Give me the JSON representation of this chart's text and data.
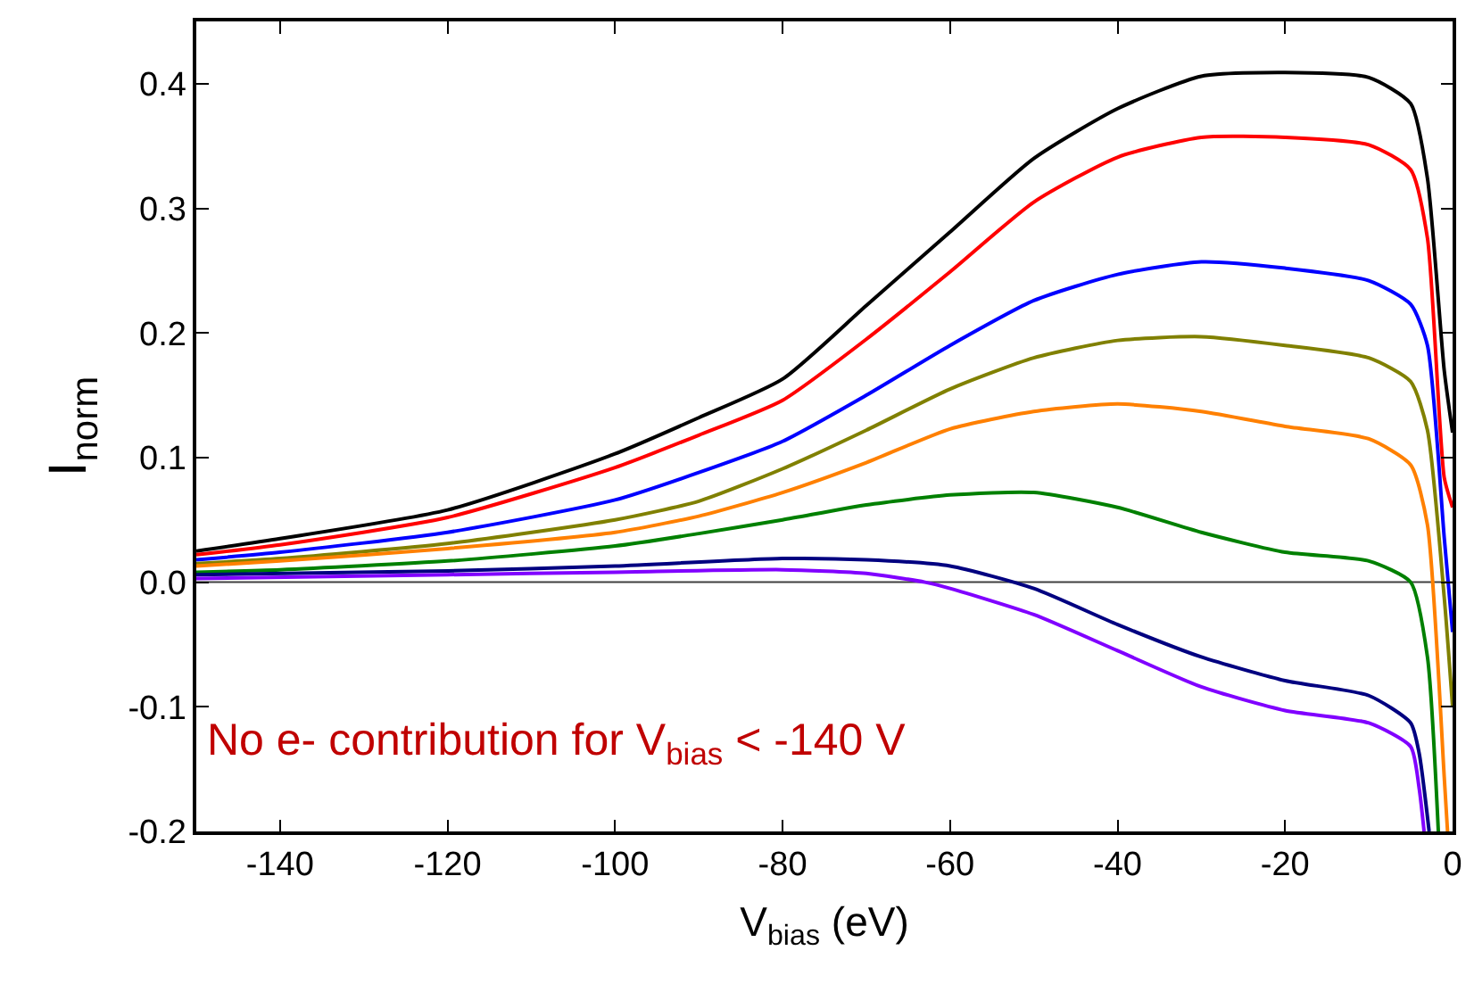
{
  "chart_data": {
    "type": "line",
    "xlabel": "V$_{bias}$ (eV)",
    "ylabel": "I$_{norm}$",
    "annotations": [
      "No e- contribution for V$_{bias}$ < -140 V"
    ],
    "xlim": [
      -150,
      0
    ],
    "xticks": [
      -140,
      -120,
      -100,
      -80,
      -60,
      -40,
      -20,
      0
    ],
    "ylim": [
      -0.2,
      0.45
    ],
    "yticks": [
      {
        "value": -0.2,
        "label": "-0.2"
      },
      {
        "value": -0.1,
        "label": "-0.1"
      },
      {
        "value": 0,
        "label": "0.0"
      },
      {
        "value": 0.1,
        "label": "0.1"
      },
      {
        "value": 0.2,
        "label": "0.2"
      },
      {
        "value": 0.3,
        "label": "0.3"
      },
      {
        "value": 0.4,
        "label": "0.4"
      }
    ],
    "line_style": "solid",
    "ref_lines": [
      {
        "axis": "y",
        "value": 0,
        "color": "#404040"
      }
    ],
    "series": [
      {
        "color": "#000000",
        "x": [
          -150,
          -140,
          -120,
          -100,
          -90,
          -80,
          -70,
          -60,
          -50,
          -40,
          -30,
          -20,
          -10,
          -5,
          -3,
          -1,
          0
        ],
        "values": [
          0.025,
          0.035,
          0.058,
          0.103,
          0.132,
          0.163,
          0.222,
          0.281,
          0.34,
          0.38,
          0.406,
          0.409,
          0.405,
          0.384,
          0.324,
          0.17,
          0.12
        ]
      },
      {
        "color": "#ff0000",
        "x": [
          -150,
          -140,
          -120,
          -100,
          -90,
          -80,
          -70,
          -60,
          -50,
          -40,
          -30,
          -20,
          -10,
          -5,
          -3,
          -1,
          0
        ],
        "values": [
          0.022,
          0.03,
          0.052,
          0.092,
          0.118,
          0.146,
          0.195,
          0.249,
          0.305,
          0.341,
          0.357,
          0.357,
          0.351,
          0.331,
          0.276,
          0.084,
          0.06
        ]
      },
      {
        "color": "#0000ff",
        "x": [
          -150,
          -140,
          -120,
          -100,
          -90,
          -80,
          -70,
          -60,
          -50,
          -40,
          -30,
          -20,
          -10,
          -5,
          -3,
          -1,
          0
        ],
        "values": [
          0.018,
          0.024,
          0.04,
          0.066,
          0.088,
          0.113,
          0.15,
          0.19,
          0.226,
          0.247,
          0.257,
          0.252,
          0.242,
          0.223,
          0.19,
          0.036,
          -0.04
        ]
      },
      {
        "color": "#808000",
        "x": [
          -150,
          -140,
          -120,
          -100,
          -90,
          -80,
          -70,
          -60,
          -50,
          -40,
          -30,
          -20,
          -10,
          -5,
          -3,
          -1,
          0
        ],
        "values": [
          0.015,
          0.019,
          0.031,
          0.05,
          0.065,
          0.091,
          0.122,
          0.155,
          0.18,
          0.194,
          0.197,
          0.19,
          0.18,
          0.161,
          0.122,
          -0.012,
          -0.1
        ]
      },
      {
        "color": "#ff8000",
        "x": [
          -150,
          -140,
          -120,
          -100,
          -90,
          -80,
          -70,
          -60,
          -50,
          -40,
          -30,
          -20,
          -10,
          -5,
          -3,
          -1,
          -0.6
        ],
        "values": [
          0.013,
          0.017,
          0.027,
          0.04,
          0.053,
          0.072,
          0.096,
          0.123,
          0.137,
          0.143,
          0.137,
          0.125,
          0.115,
          0.094,
          0.046,
          -0.156,
          -0.2
        ]
      },
      {
        "color": "#008000",
        "x": [
          -150,
          -140,
          -120,
          -100,
          -90,
          -80,
          -70,
          -60,
          -50,
          -40,
          -30,
          -20,
          -10,
          -5,
          -3,
          -1.7
        ],
        "values": [
          0.008,
          0.01,
          0.017,
          0.029,
          0.039,
          0.05,
          0.062,
          0.07,
          0.072,
          0.06,
          0.04,
          0.024,
          0.017,
          0,
          -0.06,
          -0.2
        ]
      },
      {
        "color": "#000080",
        "x": [
          -150,
          -120,
          -100,
          -80,
          -70,
          -60,
          -50,
          -40,
          -30,
          -20,
          -10,
          -5,
          -4,
          -2.8
        ],
        "values": [
          0.006,
          0.009,
          0.013,
          0.019,
          0.018,
          0.013,
          -0.005,
          -0.034,
          -0.06,
          -0.079,
          -0.091,
          -0.113,
          -0.137,
          -0.2
        ]
      },
      {
        "color": "#8000ff",
        "x": [
          -150,
          -120,
          -100,
          -80,
          -70,
          -63,
          -60,
          -50,
          -40,
          -30,
          -20,
          -10,
          -5,
          -4,
          -3.4
        ],
        "values": [
          0.003,
          0.006,
          0.008,
          0.01,
          0.007,
          0,
          -0.005,
          -0.026,
          -0.055,
          -0.084,
          -0.103,
          -0.113,
          -0.132,
          -0.165,
          -0.2
        ]
      }
    ]
  }
}
